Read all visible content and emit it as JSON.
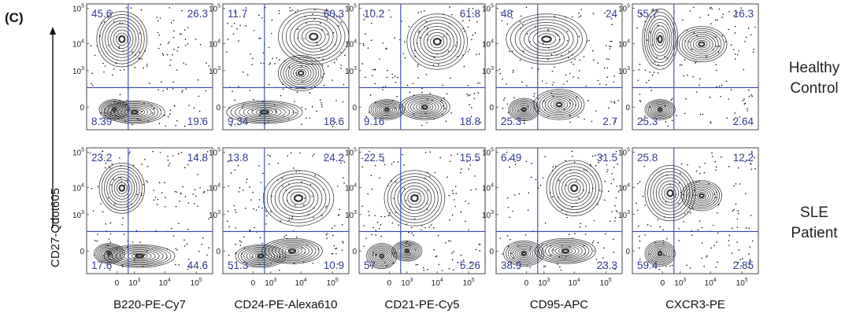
{
  "panel_label": "(C)",
  "chart_data": {
    "type": "scatter",
    "description_kind": "flow cytometry contour plots with quadrant gates",
    "y_axis_label": "CD27-Qdot605",
    "y_ticks": [
      {
        "base": "10",
        "exp": "5"
      },
      {
        "base": "10",
        "exp": "4"
      },
      {
        "base": "10",
        "exp": "3"
      },
      {
        "base": "0",
        "exp": ""
      }
    ],
    "x_ticks": [
      {
        "base": "0",
        "exp": ""
      },
      {
        "base": "10",
        "exp": "3"
      },
      {
        "base": "10",
        "exp": "4"
      },
      {
        "base": "10",
        "exp": "5"
      }
    ],
    "rows": [
      {
        "label_lines": [
          "Healthy",
          "Control"
        ]
      },
      {
        "label_lines": [
          "SLE",
          "Patient"
        ]
      }
    ],
    "columns": [
      {
        "xlabel": "B220-PE-Cy7"
      },
      {
        "xlabel": "CD24-PE-Alexa610"
      },
      {
        "xlabel": "CD21-PE-Cy5"
      },
      {
        "xlabel": "CD95-APC"
      },
      {
        "xlabel": "CXCR3-PE"
      }
    ],
    "panels": [
      [
        {
          "q": {
            "tl": "45.6",
            "tr": "26.3",
            "bl": "8.39",
            "br": "19.6"
          }
        },
        {
          "q": {
            "tl": "11.7",
            "tr": "60.3",
            "bl": "9.34",
            "br": "18.6"
          }
        },
        {
          "q": {
            "tl": "10.2",
            "tr": "61.8",
            "bl": "9.16",
            "br": "18.8"
          }
        },
        {
          "q": {
            "tl": "48",
            "tr": "24",
            "bl": "25.3",
            "br": "2.7"
          }
        },
        {
          "q": {
            "tl": "55.7",
            "tr": "16.3",
            "bl": "25.3",
            "br": "2.64"
          }
        }
      ],
      [
        {
          "q": {
            "tl": "23.2",
            "tr": "14.8",
            "bl": "17.6",
            "br": "44.6"
          }
        },
        {
          "q": {
            "tl": "13.8",
            "tr": "24.2",
            "bl": "51.3",
            "br": "10.9"
          }
        },
        {
          "q": {
            "tl": "22.5",
            "tr": "15.5",
            "bl": "57",
            "br": "5.26"
          }
        },
        {
          "q": {
            "tl": "6.49",
            "tr": "31.5",
            "bl": "38.9",
            "br": "23.3"
          }
        },
        {
          "q": {
            "tl": "25.8",
            "tr": "12.2",
            "bl": "59.4",
            "br": "2.85"
          }
        }
      ]
    ]
  }
}
